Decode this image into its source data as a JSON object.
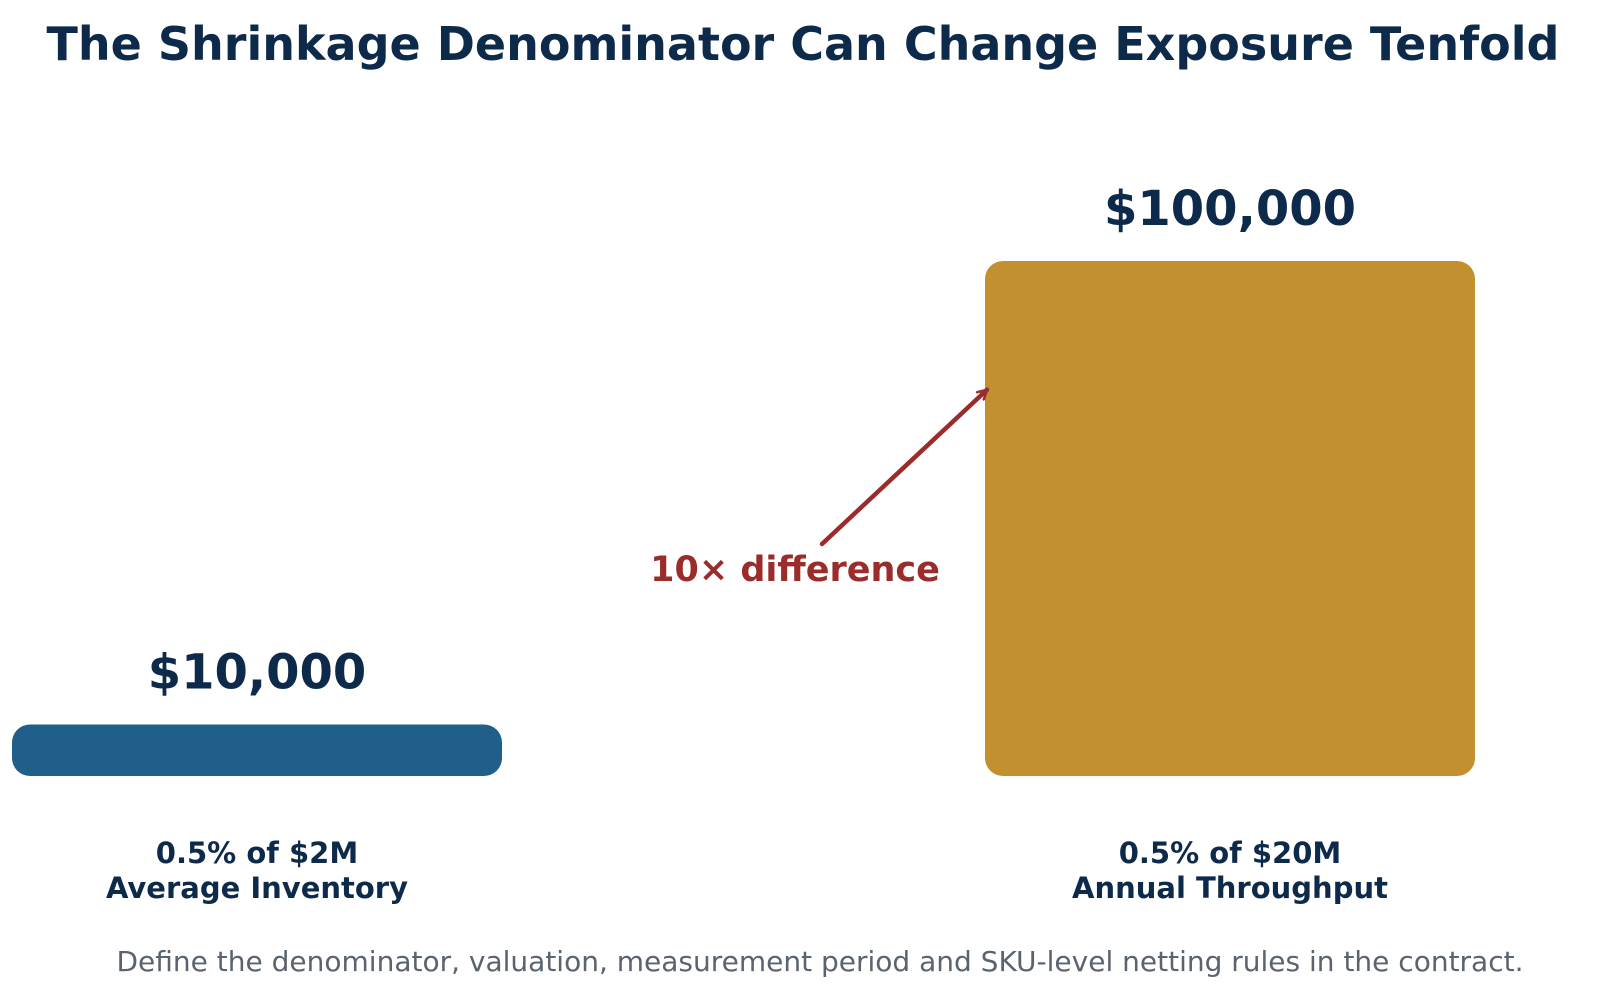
{
  "colors": {
    "text_dark": "#0d2a4a",
    "accent_red": "#9b2c2c",
    "footnote_gray": "#5a6470",
    "bar_blue": "#1f5f89",
    "bar_gold": "#c39030"
  },
  "chart_data": {
    "type": "bar",
    "title": "The Shrinkage Denominator Can Change Exposure Tenfold",
    "categories": [
      {
        "line1": "0.5% of $2M",
        "line2": "Average Inventory"
      },
      {
        "line1": "0.5% of $20M",
        "line2": "Annual Throughput"
      }
    ],
    "values": [
      10000,
      100000
    ],
    "value_labels": [
      "$10,000",
      "$100,000"
    ],
    "bar_colors": [
      "#1f5f89",
      "#c39030"
    ],
    "ylim": [
      0,
      100000
    ],
    "grid": false,
    "axes_visible": false,
    "annotation": {
      "text": "10× difference",
      "points_to": "top of the second bar"
    },
    "footnote": "Define the denominator, valuation, measurement period and SKU-level netting rules in the contract."
  }
}
